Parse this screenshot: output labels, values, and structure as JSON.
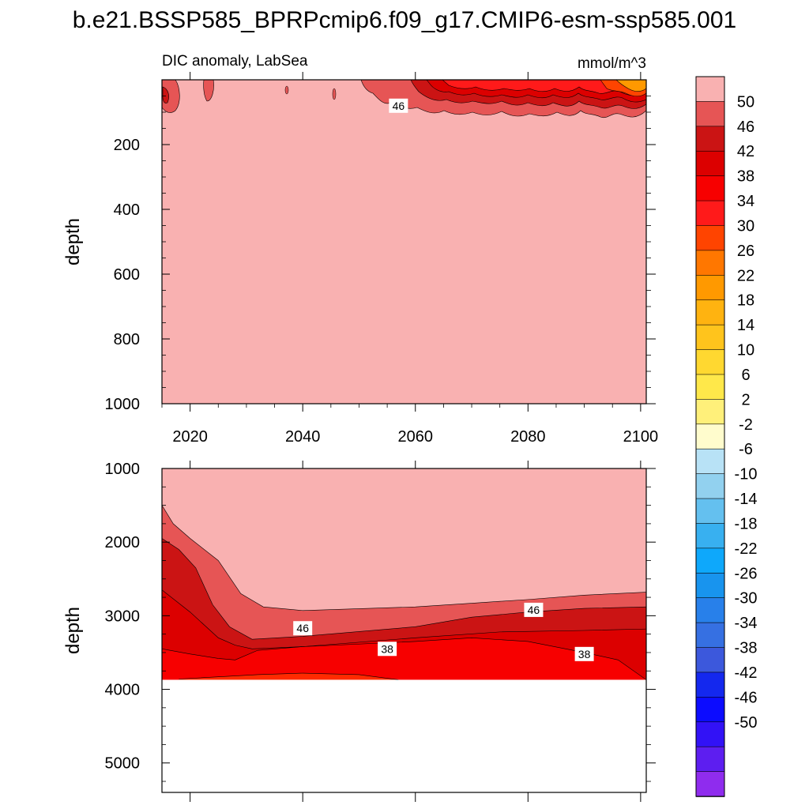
{
  "figure": {
    "title": "b.e21.BSSP585_BPRPcmip6.f09_g17.CMIP6-esm-ssp585.001",
    "subtitle_left": "DIC anomaly, LabSea",
    "subtitle_right": "mmol/m^3"
  },
  "colorbar": {
    "labels": [
      "50",
      "46",
      "42",
      "38",
      "34",
      "30",
      "26",
      "22",
      "18",
      "14",
      "10",
      "6",
      "2",
      "-2",
      "-6",
      "-10",
      "-14",
      "-18",
      "-22",
      "-26",
      "-30",
      "-34",
      "-38",
      "-42",
      "-46",
      "-50"
    ],
    "colors": [
      "#f9b1b1",
      "#e65555",
      "#cb1414",
      "#dc0000",
      "#f70000",
      "#ff1a1a",
      "#ff4400",
      "#ff7700",
      "#ff9900",
      "#ffb310",
      "#ffc41c",
      "#ffd830",
      "#ffe84a",
      "#fff07a",
      "#fffccd",
      "#b8e2f6",
      "#92d1ef",
      "#64c0ef",
      "#38b0f0",
      "#0ea8fb",
      "#1894ee",
      "#2880ea",
      "#3670e2",
      "#3c58dc",
      "#1428ee",
      "#0c0cff",
      "#3212f6",
      "#5d1ef0",
      "#8f2cee"
    ]
  },
  "chart_data": [
    {
      "type": "contour",
      "panel": "upper",
      "title": "DIC anomaly, LabSea",
      "units": "mmol/m^3",
      "xlabel": "",
      "ylabel": "depth",
      "xlim": [
        2015,
        2101
      ],
      "ylim": [
        1000,
        0
      ],
      "x_ticks": [
        2020,
        2040,
        2060,
        2080,
        2100
      ],
      "y_ticks": [
        200,
        400,
        600,
        800,
        1000
      ],
      "contour_levels": [
        -50,
        -46,
        -42,
        -38,
        -34,
        -30,
        -26,
        -22,
        -18,
        -14,
        -10,
        -6,
        -2,
        2,
        6,
        10,
        14,
        18,
        22,
        26,
        30,
        34,
        38,
        42,
        46,
        50
      ],
      "background_value": ">50",
      "contour_labels": [
        {
          "text": "46",
          "year": 2057,
          "depth": 80
        }
      ],
      "features": [
        {
          "desc": "values 46-50",
          "year_range": [
            2015,
            2018
          ],
          "depth_range": [
            0,
            90
          ]
        },
        {
          "desc": "values 46-50",
          "year_range": [
            2022,
            2025
          ],
          "depth_range": [
            0,
            70
          ]
        },
        {
          "desc": "values 26-46 near surface",
          "year_range": [
            2052,
            2101
          ],
          "depth_range": [
            0,
            120
          ]
        }
      ]
    },
    {
      "type": "contour",
      "panel": "lower",
      "xlabel": "",
      "ylabel": "depth",
      "xlim": [
        2015,
        2101
      ],
      "ylim": [
        5400,
        1000
      ],
      "y_ticks": [
        1000,
        2000,
        3000,
        4000,
        5000
      ],
      "missing_below_depth": 3870,
      "contour_labels": [
        {
          "text": "46",
          "year": 2040,
          "depth": 3170
        },
        {
          "text": "38",
          "year": 2055,
          "depth": 3450
        },
        {
          "text": "46",
          "year": 2081,
          "depth": 2920
        },
        {
          "text": "38",
          "year": 2090,
          "depth": 3520
        }
      ],
      "contour_lines": [
        {
          "level": 50,
          "year": [
            2015,
            2017,
            2020,
            2025,
            2029,
            2033,
            2040,
            2060,
            2070,
            2080,
            2090,
            2101
          ],
          "depth": [
            1500,
            1750,
            1950,
            2250,
            2700,
            2880,
            2930,
            2880,
            2830,
            2780,
            2720,
            2680
          ]
        },
        {
          "level": 46,
          "year": [
            2015,
            2018,
            2021,
            2024,
            2027,
            2031,
            2040,
            2060,
            2070,
            2080,
            2090,
            2101
          ],
          "depth": [
            1950,
            2100,
            2350,
            2850,
            3150,
            3320,
            3280,
            3150,
            3020,
            2950,
            2900,
            2880
          ]
        },
        {
          "level": 42,
          "year": [
            2015,
            2020,
            2025,
            2028,
            2031,
            2040,
            2060,
            2075,
            2090,
            2101
          ],
          "depth": [
            2650,
            2950,
            3300,
            3400,
            3450,
            3420,
            3300,
            3220,
            3200,
            3180
          ]
        },
        {
          "level": 38,
          "year": [
            2015,
            2020,
            2025,
            2028,
            2032,
            2040,
            2060,
            2070,
            2080,
            2090,
            2096,
            2101
          ],
          "depth": [
            3450,
            3520,
            3580,
            3600,
            3470,
            3420,
            3350,
            3300,
            3350,
            3500,
            3600,
            3870
          ]
        },
        {
          "level": 34,
          "year": [
            2018,
            2032,
            2040,
            2050,
            2057
          ],
          "depth": [
            3860,
            3800,
            3780,
            3800,
            3870
          ]
        }
      ]
    }
  ]
}
